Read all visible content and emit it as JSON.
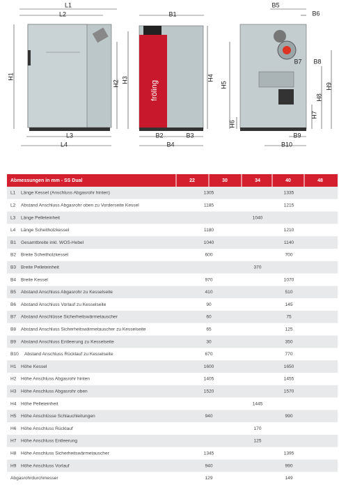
{
  "drawings": {
    "labels": [
      "L1",
      "L2",
      "H1",
      "H2",
      "H3",
      "L3",
      "L4",
      "B1",
      "H4",
      "B2",
      "B3",
      "B4",
      "B5",
      "B6",
      "B7",
      "B8",
      "H5",
      "H6",
      "H7",
      "H8",
      "H9",
      "B9",
      "B10"
    ],
    "brand": "fröling"
  },
  "table": {
    "header": {
      "title": "Abmessungen in mm - SS Dual",
      "columns": [
        22,
        30,
        34,
        40,
        48
      ]
    },
    "rows": [
      {
        "code": "L1",
        "label": "Länge Kessel (Anschluss Abgasrohr hinten)",
        "values": [
          1305,
          1335
        ]
      },
      {
        "code": "L2",
        "label": "Abstand Anschluss Abgasrohr oben zu Vorderseite Kessel",
        "values": [
          1185,
          1215
        ]
      },
      {
        "code": "L3",
        "label": "Länge Pelleteinheit",
        "values": [
          1040
        ]
      },
      {
        "code": "L4",
        "label": "Länge Scheitholzkessel",
        "values": [
          1180,
          1210
        ]
      },
      {
        "code": "B1",
        "label": "Gesamtbreite inkl. WOS-Hebel",
        "values": [
          1040,
          1140
        ]
      },
      {
        "code": "B2",
        "label": "Breite Scheitholzkessel",
        "values": [
          600,
          700
        ]
      },
      {
        "code": "B3",
        "label": "Breite Pelleteinheit",
        "values": [
          370
        ]
      },
      {
        "code": "B4",
        "label": "Breite Kessel",
        "values": [
          970,
          1070
        ]
      },
      {
        "code": "B5",
        "label": "Abstand Anschluss Abgasrohr zu Kesselseite",
        "values": [
          410,
          510
        ]
      },
      {
        "code": "B6",
        "label": "Abstand Anschluss Vorlauf zu Kesselseite",
        "values": [
          90,
          145
        ]
      },
      {
        "code": "B7",
        "label": "Abstand Anschlüsse Sicherheitswärmetauscher",
        "values": [
          60,
          75
        ]
      },
      {
        "code": "B8",
        "label": "Abstand Anschluss Sicherheitswärmetauscher zu Kesselseite",
        "values": [
          65,
          125
        ]
      },
      {
        "code": "B9",
        "label": "Abstand Anschluss Entleerung zu Kesselseite",
        "values": [
          30,
          350
        ]
      },
      {
        "code": "B10",
        "label": "Abstand Anschluss Rücklauf zu Kesselseite",
        "values": [
          670,
          770
        ]
      },
      {
        "code": "H1",
        "label": "Höhe Kessel",
        "values": [
          1600,
          1650
        ]
      },
      {
        "code": "H2",
        "label": "Höhe Anschluss Abgasrohr hinten",
        "values": [
          1405,
          1455
        ]
      },
      {
        "code": "H3",
        "label": "Höhe Anschluss Abgasrohr oben",
        "values": [
          1520,
          1570
        ]
      },
      {
        "code": "H4",
        "label": "Höhe Pelleteinheit",
        "values": [
          1445
        ]
      },
      {
        "code": "H5",
        "label": "Höhe Anschlüsse Schlauchleitungen",
        "values": [
          940,
          990
        ]
      },
      {
        "code": "H6",
        "label": "Höhe Anschluss Rücklauf",
        "values": [
          170
        ]
      },
      {
        "code": "H7",
        "label": "Höhe Anschluss Entleerung",
        "values": [
          125
        ]
      },
      {
        "code": "H8",
        "label": "Höhe Anschluss Sicherheitswärmetauscher",
        "values": [
          1345,
          1395
        ]
      },
      {
        "code": "H9",
        "label": "Höhe Anschluss Vorlauf",
        "values": [
          940,
          990
        ]
      },
      {
        "label": "Abgasrohrdurchmesser",
        "values": [
          129,
          149
        ]
      }
    ]
  }
}
